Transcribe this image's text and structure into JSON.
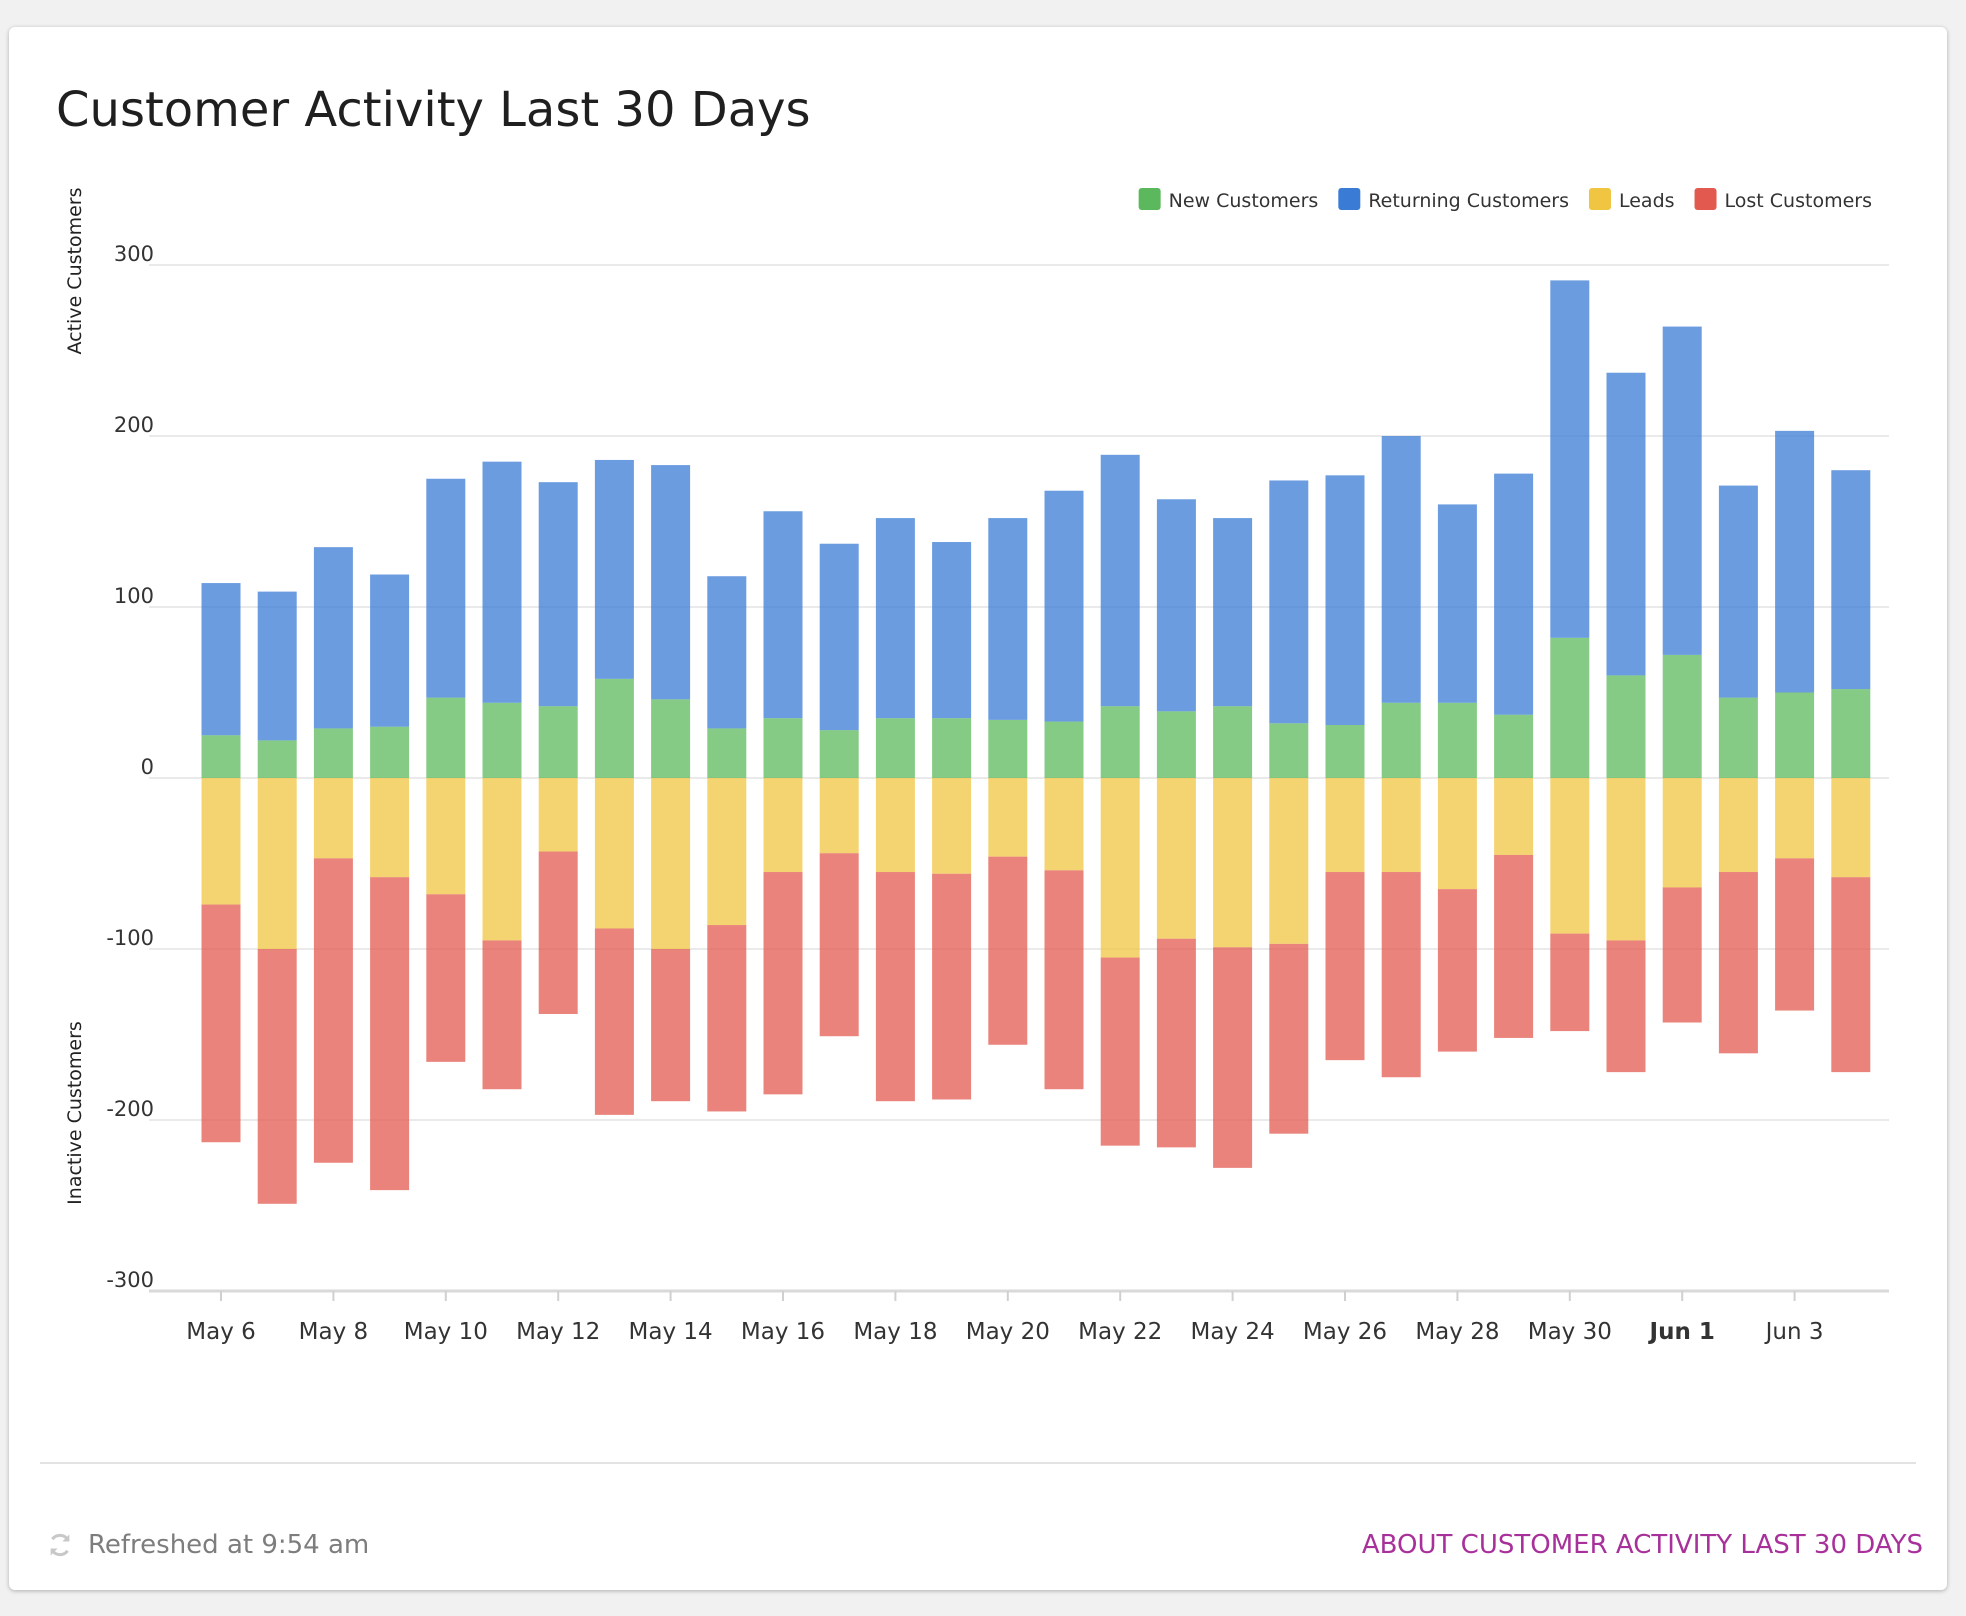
{
  "card": {
    "title": "Customer Activity Last 30 Days",
    "refreshed_text": "Refreshed at 9:54 am",
    "about_link": "ABOUT CUSTOMER ACTIVITY LAST 30 DAYS"
  },
  "colors": {
    "new": "#5cb85c",
    "returning": "#3a7bd5",
    "leads": "#f0c541",
    "lost": "#e25a4f",
    "link": "#a8309a"
  },
  "chart_data": {
    "type": "bar",
    "stacked": true,
    "title": "",
    "ylabel_positive": "Active Customers",
    "ylabel_negative": "Inactive Customers",
    "ylim": [
      -300,
      300
    ],
    "yticks": [
      300,
      200,
      100,
      0,
      -100,
      -200,
      -300
    ],
    "grid": true,
    "legend_position": "top-right",
    "categories": [
      "May 6",
      "May 7",
      "May 8",
      "May 9",
      "May 10",
      "May 11",
      "May 12",
      "May 13",
      "May 14",
      "May 15",
      "May 16",
      "May 17",
      "May 18",
      "May 19",
      "May 20",
      "May 21",
      "May 22",
      "May 23",
      "May 24",
      "May 25",
      "May 26",
      "May 27",
      "May 28",
      "May 29",
      "May 30",
      "May 31",
      "Jun 1",
      "Jun 2",
      "Jun 3",
      "Jun 4"
    ],
    "xtick_labels": [
      {
        "label": "May 6",
        "index": 0,
        "bold": false
      },
      {
        "label": "May 8",
        "index": 2,
        "bold": false
      },
      {
        "label": "May 10",
        "index": 4,
        "bold": false
      },
      {
        "label": "May 12",
        "index": 6,
        "bold": false
      },
      {
        "label": "May 14",
        "index": 8,
        "bold": false
      },
      {
        "label": "May 16",
        "index": 10,
        "bold": false
      },
      {
        "label": "May 18",
        "index": 12,
        "bold": false
      },
      {
        "label": "May 20",
        "index": 14,
        "bold": false
      },
      {
        "label": "May 22",
        "index": 16,
        "bold": false
      },
      {
        "label": "May 24",
        "index": 18,
        "bold": false
      },
      {
        "label": "May 26",
        "index": 20,
        "bold": false
      },
      {
        "label": "May 28",
        "index": 22,
        "bold": false
      },
      {
        "label": "May 30",
        "index": 24,
        "bold": false
      },
      {
        "label": "Jun 1",
        "index": 26,
        "bold": true
      },
      {
        "label": "Jun 3",
        "index": 28,
        "bold": false
      }
    ],
    "series": [
      {
        "name": "New Customers",
        "key": "new",
        "values": [
          25,
          22,
          29,
          30,
          47,
          44,
          42,
          58,
          46,
          29,
          35,
          28,
          35,
          35,
          34,
          33,
          42,
          39,
          42,
          32,
          31,
          44,
          44,
          37,
          82,
          60,
          72,
          47,
          50,
          52
        ]
      },
      {
        "name": "Returning Customers",
        "key": "returning",
        "values": [
          89,
          87,
          106,
          89,
          128,
          141,
          131,
          128,
          137,
          89,
          121,
          109,
          117,
          103,
          118,
          135,
          147,
          124,
          110,
          142,
          146,
          156,
          116,
          141,
          209,
          177,
          192,
          124,
          153,
          128
        ]
      },
      {
        "name": "Leads",
        "key": "leads",
        "values": [
          -74,
          -100,
          -47,
          -58,
          -68,
          -95,
          -43,
          -88,
          -100,
          -86,
          -55,
          -44,
          -55,
          -56,
          -46,
          -54,
          -105,
          -94,
          -99,
          -97,
          -55,
          -55,
          -65,
          -45,
          -91,
          -95,
          -64,
          -55,
          -47,
          -58
        ]
      },
      {
        "name": "Lost Customers",
        "key": "lost",
        "values": [
          -139,
          -149,
          -178,
          -183,
          -98,
          -87,
          -95,
          -109,
          -89,
          -109,
          -130,
          -107,
          -134,
          -132,
          -110,
          -128,
          -110,
          -122,
          -129,
          -111,
          -110,
          -120,
          -95,
          -107,
          -57,
          -77,
          -79,
          -106,
          -89,
          -114
        ]
      }
    ]
  }
}
